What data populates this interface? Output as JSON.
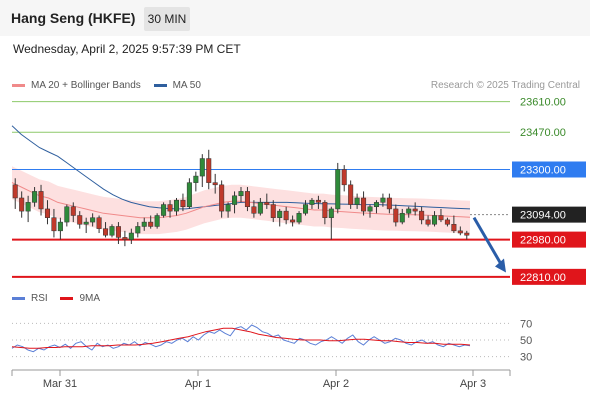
{
  "header": {
    "title": "Hang Seng (HKFE)",
    "timeframe": "30 MIN",
    "datetime": "Wednesday, April 2, 2025 9:57:39 PM CET"
  },
  "legend": {
    "ma20_label": "MA 20 + Bollinger Bands",
    "ma50_label": "MA 50",
    "rsi_label": "RSI",
    "ma9_label": "9MA",
    "ma20_color": "#f08a8a",
    "ma50_color": "#2f5f9e",
    "rsi_color": "#5b7fd6",
    "ma9_color": "#e0151b"
  },
  "copyright": "Research © 2025 Trading Central",
  "chart_data": [
    {
      "type": "candlestick",
      "x_ticks": [
        "Mar 31",
        "Apr 1",
        "Apr 2",
        "Apr 3"
      ],
      "ylim": [
        22750,
        23640
      ],
      "levels": [
        {
          "value": 23610.0,
          "label": "23610.00",
          "color": "#8dc96a",
          "text_color": "#3a8a2a",
          "style": "thin"
        },
        {
          "value": 23470.0,
          "label": "23470.00",
          "color": "#8dc96a",
          "text_color": "#3a8a2a",
          "style": "thin"
        },
        {
          "value": 23300.0,
          "label": "23300.00",
          "color": "#2f7cf0",
          "text_color": "#ffffff",
          "style": "resistance"
        },
        {
          "value": 23094.0,
          "label": "23094.00",
          "color": "#222222",
          "text_color": "#ffffff",
          "style": "current"
        },
        {
          "value": 22980.0,
          "label": "22980.00",
          "color": "#e0151b",
          "text_color": "#ffffff",
          "style": "support"
        },
        {
          "value": 22810.0,
          "label": "22810.00",
          "color": "#e0151b",
          "text_color": "#ffffff",
          "style": "support"
        }
      ],
      "forecast": {
        "from": 23094,
        "to": 22830
      },
      "candles": [
        [
          23230,
          23260,
          23120,
          23170
        ],
        [
          23170,
          23200,
          23080,
          23110
        ],
        [
          23110,
          23180,
          23060,
          23150
        ],
        [
          23150,
          23220,
          23130,
          23200
        ],
        [
          23200,
          23230,
          23090,
          23120
        ],
        [
          23120,
          23160,
          23050,
          23080
        ],
        [
          23080,
          23120,
          22990,
          23020
        ],
        [
          23020,
          23080,
          22980,
          23060
        ],
        [
          23060,
          23140,
          23040,
          23130
        ],
        [
          23130,
          23150,
          23060,
          23090
        ],
        [
          23090,
          23110,
          23030,
          23050
        ],
        [
          23050,
          23080,
          23010,
          23060
        ],
        [
          23060,
          23100,
          23040,
          23080
        ],
        [
          23080,
          23090,
          23010,
          23030
        ],
        [
          23030,
          23060,
          22990,
          23000
        ],
        [
          23000,
          23050,
          22990,
          23040
        ],
        [
          23040,
          23060,
          22960,
          22990
        ],
        [
          22990,
          23020,
          22950,
          22980
        ],
        [
          22980,
          23030,
          22960,
          23010
        ],
        [
          23010,
          23060,
          22990,
          23040
        ],
        [
          23040,
          23080,
          23020,
          23060
        ],
        [
          23060,
          23090,
          23030,
          23040
        ],
        [
          23040,
          23100,
          23030,
          23090
        ],
        [
          23090,
          23150,
          23080,
          23140
        ],
        [
          23140,
          23160,
          23080,
          23110
        ],
        [
          23110,
          23170,
          23090,
          23160
        ],
        [
          23160,
          23190,
          23110,
          23130
        ],
        [
          23130,
          23260,
          23120,
          23240
        ],
        [
          23240,
          23290,
          23200,
          23270
        ],
        [
          23270,
          23370,
          23220,
          23350
        ],
        [
          23350,
          23390,
          23210,
          23240
        ],
        [
          23240,
          23280,
          23190,
          23230
        ],
        [
          23230,
          23250,
          23080,
          23110
        ],
        [
          23110,
          23150,
          23080,
          23140
        ],
        [
          23140,
          23200,
          23100,
          23180
        ],
        [
          23180,
          23220,
          23150,
          23200
        ],
        [
          23200,
          23220,
          23110,
          23130
        ],
        [
          23130,
          23160,
          23080,
          23100
        ],
        [
          23100,
          23170,
          23090,
          23150
        ],
        [
          23150,
          23190,
          23120,
          23140
        ],
        [
          23140,
          23160,
          23060,
          23080
        ],
        [
          23080,
          23120,
          23040,
          23110
        ],
        [
          23110,
          23130,
          23050,
          23070
        ],
        [
          23070,
          23090,
          23040,
          23060
        ],
        [
          23060,
          23110,
          23050,
          23100
        ],
        [
          23100,
          23160,
          23090,
          23140
        ],
        [
          23140,
          23170,
          23120,
          23160
        ],
        [
          23160,
          23180,
          23120,
          23150
        ],
        [
          23150,
          23160,
          23050,
          23080
        ],
        [
          23080,
          23130,
          22980,
          23120
        ],
        [
          23120,
          23330,
          23100,
          23300
        ],
        [
          23300,
          23320,
          23200,
          23230
        ],
        [
          23230,
          23250,
          23120,
          23140
        ],
        [
          23140,
          23190,
          23120,
          23170
        ],
        [
          23170,
          23200,
          23090,
          23110
        ],
        [
          23110,
          23140,
          23080,
          23130
        ],
        [
          23130,
          23160,
          23100,
          23150
        ],
        [
          23150,
          23190,
          23130,
          23170
        ],
        [
          23170,
          23190,
          23100,
          23120
        ],
        [
          23120,
          23140,
          23040,
          23060
        ],
        [
          23060,
          23120,
          23050,
          23100
        ],
        [
          23100,
          23130,
          23080,
          23120
        ],
        [
          23120,
          23150,
          23090,
          23110
        ],
        [
          23110,
          23130,
          23050,
          23070
        ],
        [
          23070,
          23090,
          23040,
          23050
        ],
        [
          23050,
          23110,
          23040,
          23090
        ],
        [
          23090,
          23120,
          23060,
          23070
        ],
        [
          23070,
          23080,
          23040,
          23050
        ],
        [
          23050,
          23090,
          23010,
          23020
        ],
        [
          23020,
          23040,
          23000,
          23010
        ],
        [
          23010,
          23020,
          22980,
          23000
        ]
      ],
      "ma20": [
        23240,
        23220,
        23200,
        23180,
        23170,
        23150,
        23140,
        23130,
        23120,
        23110,
        23100,
        23095,
        23090,
        23085,
        23080,
        23080,
        23080,
        23085,
        23090,
        23100,
        23115,
        23130,
        23140,
        23150,
        23155,
        23155,
        23150,
        23145,
        23140,
        23135,
        23130,
        23125,
        23120,
        23115,
        23115,
        23110,
        23108,
        23105,
        23102,
        23100,
        23098,
        23096,
        23095,
        23094,
        23093,
        23092,
        23090,
        23088,
        23086,
        23084,
        23082
      ],
      "ma50": [
        23500,
        23460,
        23430,
        23400,
        23380,
        23360,
        23330,
        23300,
        23270,
        23240,
        23210,
        23185,
        23165,
        23150,
        23140,
        23130,
        23125,
        23122,
        23120,
        23120,
        23125,
        23130,
        23135,
        23140,
        23145,
        23150,
        23150,
        23150,
        23150,
        23150,
        23150,
        23148,
        23146,
        23145,
        23144,
        23143,
        23142,
        23141,
        23140,
        23140,
        23140,
        23138,
        23136,
        23134,
        23132,
        23130,
        23128,
        23126,
        23124,
        23122,
        23120
      ]
    },
    {
      "type": "line",
      "series_names": [
        "RSI",
        "9MA"
      ],
      "y_ticks": [
        70,
        50,
        30
      ],
      "ylim": [
        20,
        80
      ],
      "rsi": [
        40,
        44,
        42,
        38,
        36,
        40,
        38,
        42,
        44,
        41,
        45,
        40,
        46,
        48,
        42,
        38,
        46,
        42,
        44,
        40,
        42,
        46,
        44,
        48,
        43,
        47,
        45,
        42,
        44,
        48,
        46,
        50,
        52,
        48,
        54,
        50,
        56,
        60,
        58,
        62,
        58,
        55,
        64,
        66,
        62,
        68,
        65,
        60,
        58,
        54,
        56,
        50,
        48,
        46,
        52,
        50,
        46,
        44,
        48,
        50,
        54,
        50,
        46,
        52,
        56,
        48,
        44,
        50,
        54,
        50,
        46,
        48,
        52,
        50,
        46,
        44,
        48,
        50,
        46,
        48,
        44,
        42,
        46,
        44,
        42,
        44,
        43
      ],
      "ma9": [
        42,
        41,
        40,
        40,
        41,
        41,
        42,
        42,
        42,
        43,
        43,
        43,
        44,
        44,
        44,
        45,
        46,
        48,
        50,
        52,
        54,
        57,
        60,
        62,
        64,
        64,
        62,
        60,
        57,
        55,
        53,
        52,
        51,
        50,
        50,
        50,
        49,
        49,
        50,
        51,
        51,
        50,
        49,
        49,
        48,
        47,
        47,
        46,
        46,
        45,
        45,
        45,
        44
      ]
    }
  ]
}
